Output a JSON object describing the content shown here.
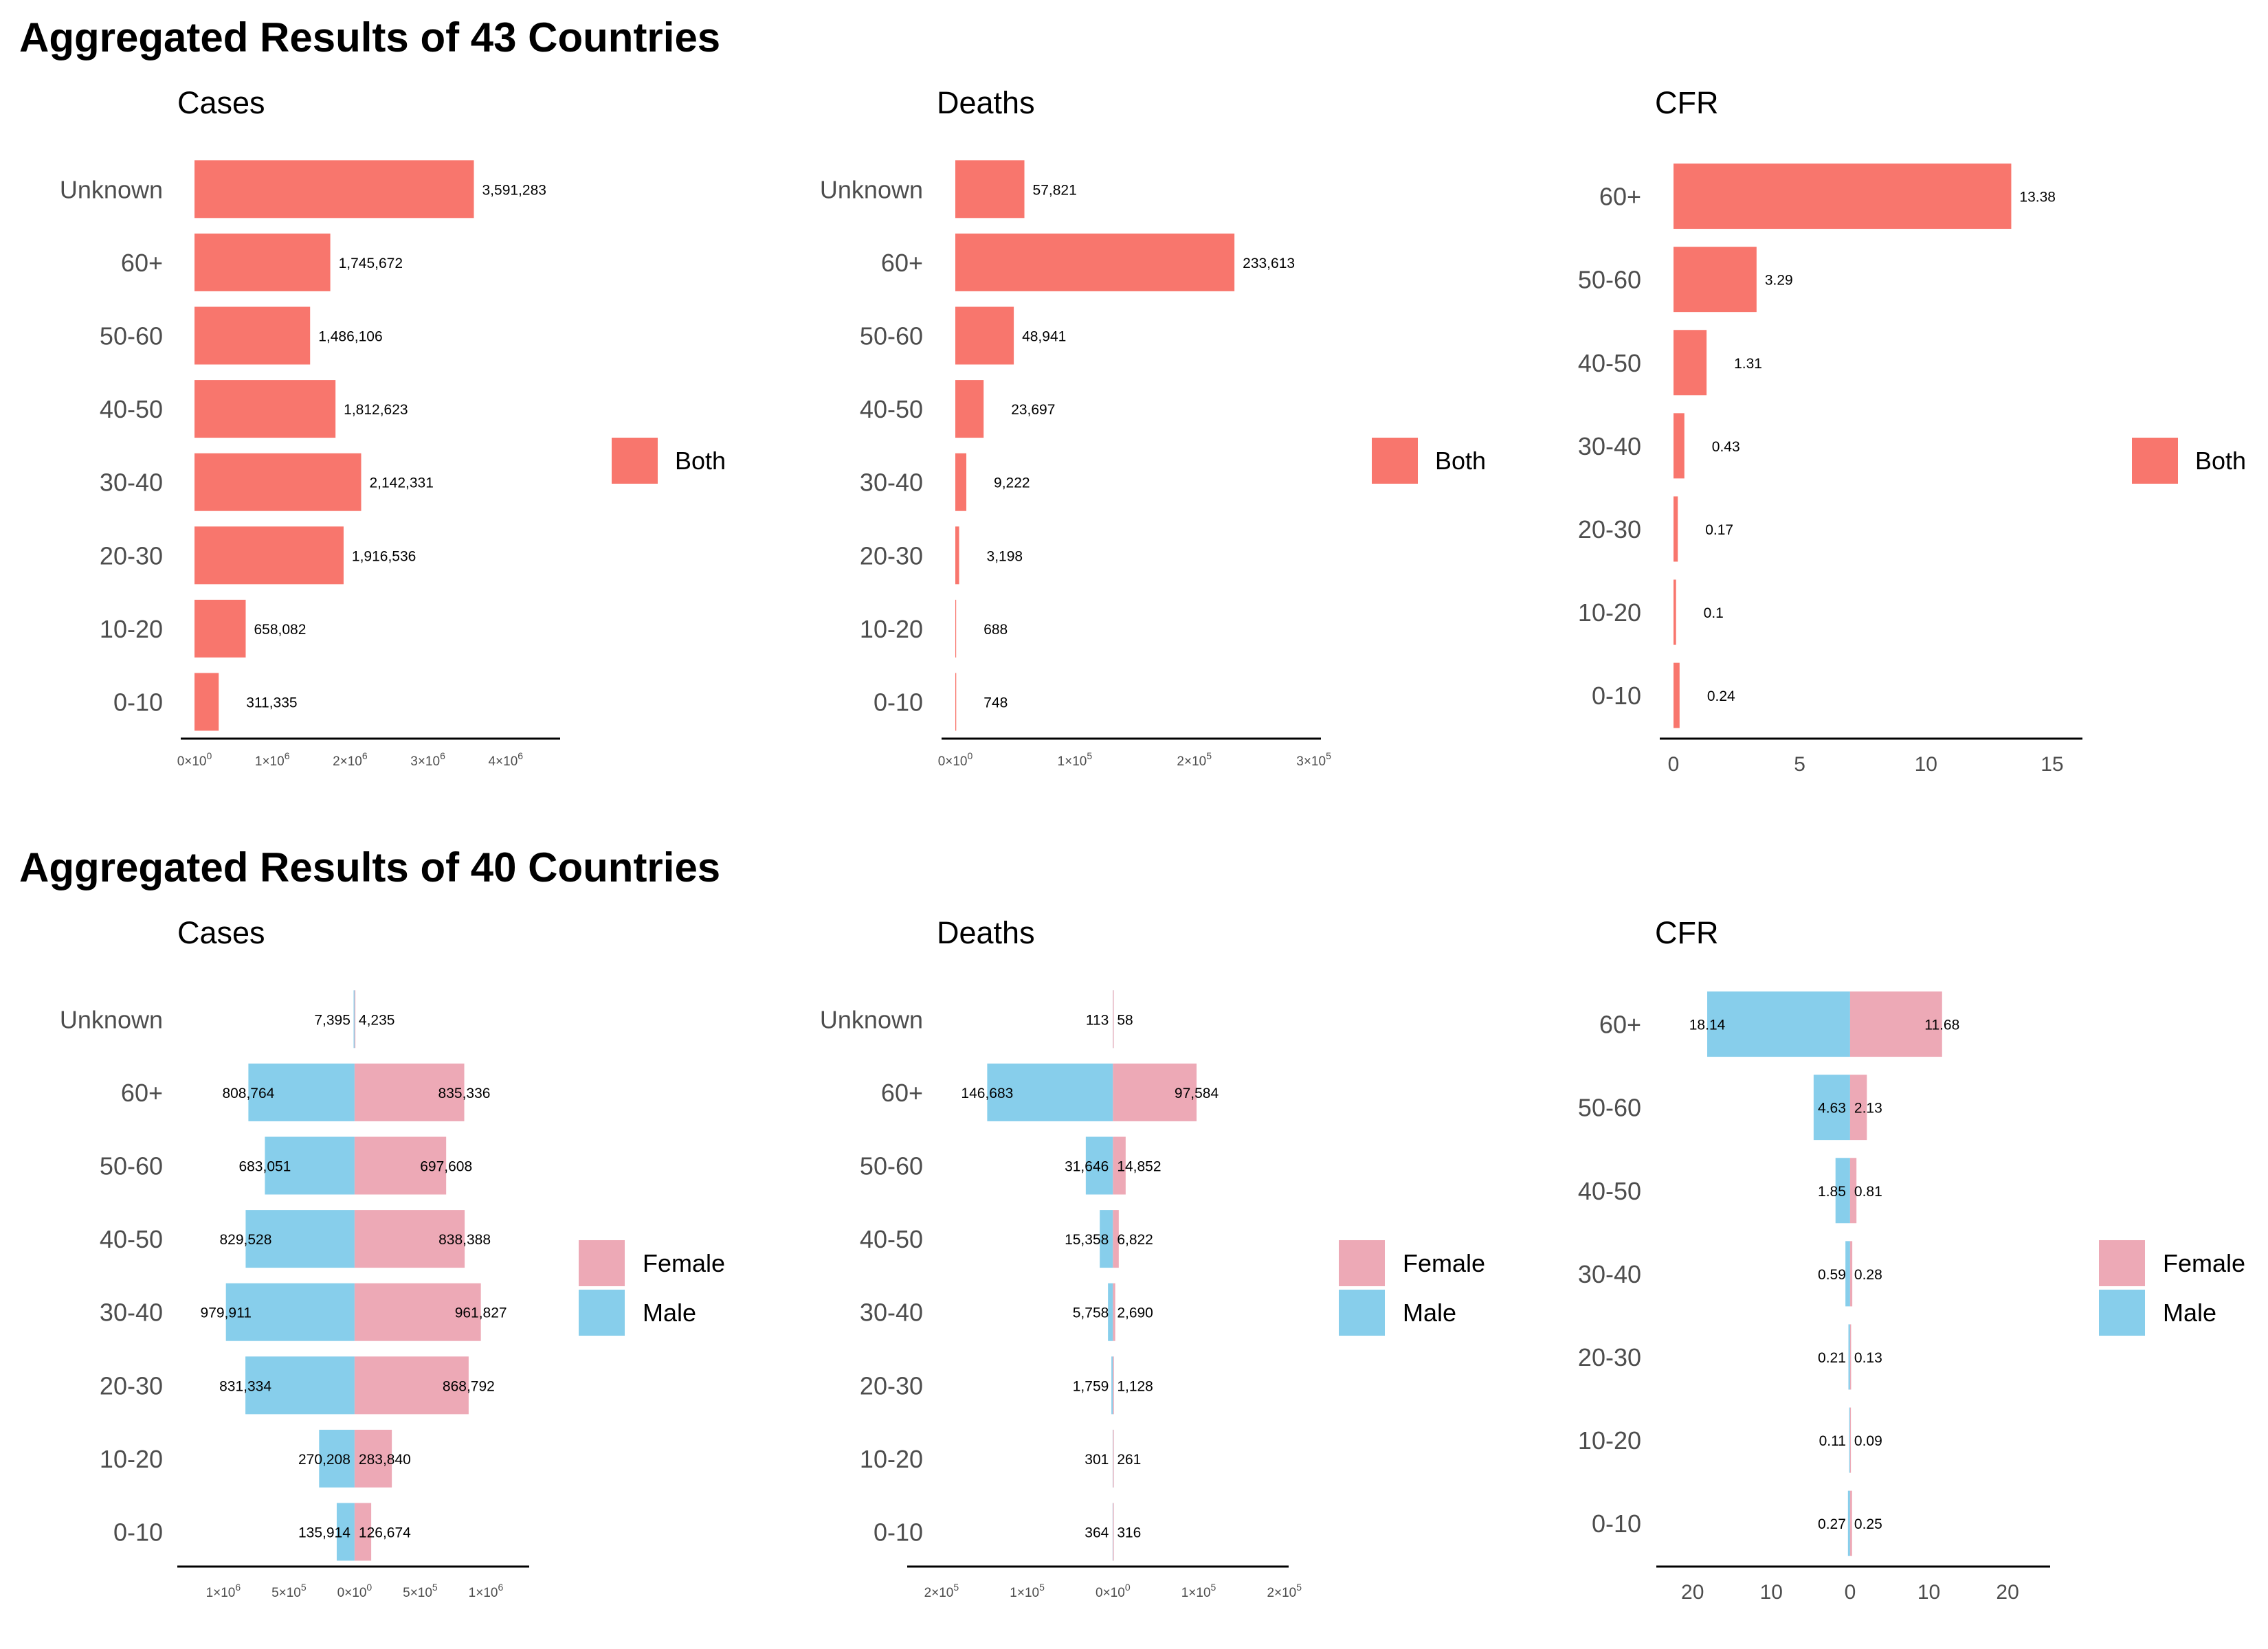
{
  "sections": [
    {
      "title": "Aggregated Results of 43 Countries",
      "charts": [
        {
          "title": "Cases",
          "type": "bar",
          "orientation": "horizontal",
          "categories": [
            "Unknown",
            "60+",
            "50-60",
            "40-50",
            "30-40",
            "20-30",
            "10-20",
            "0-10"
          ],
          "series": [
            {
              "name": "Both",
              "values": [
                3591283,
                1745672,
                1486106,
                1812623,
                2142331,
                1916536,
                658082,
                311335
              ]
            }
          ],
          "value_labels": [
            [
              "3,591,283",
              "1,745,672",
              "1,486,106",
              "1,812,623",
              "2,142,331",
              "1,916,536",
              "658,082",
              "311,335"
            ]
          ],
          "xlim": [
            0,
            4700000
          ],
          "xticks": [
            {
              "value": 0,
              "mant": "0",
              "exp": "0"
            },
            {
              "value": 1000000,
              "mant": "1",
              "exp": "6"
            },
            {
              "value": 2000000,
              "mant": "2",
              "exp": "6"
            },
            {
              "value": 3000000,
              "mant": "3",
              "exp": "6"
            },
            {
              "value": 4000000,
              "mant": "4",
              "exp": "6"
            }
          ],
          "legend_position": "right"
        },
        {
          "title": "Deaths",
          "type": "bar",
          "orientation": "horizontal",
          "categories": [
            "Unknown",
            "60+",
            "50-60",
            "40-50",
            "30-40",
            "20-30",
            "10-20",
            "0-10"
          ],
          "series": [
            {
              "name": "Both",
              "values": [
                57821,
                233613,
                48941,
                23697,
                9222,
                3198,
                688,
                748
              ]
            }
          ],
          "value_labels": [
            [
              "57,821",
              "233,613",
              "48,941",
              "23,697",
              "9,222",
              "3,198",
              "688",
              "748"
            ]
          ],
          "xlim": [
            0,
            306000
          ],
          "xticks": [
            {
              "value": 0,
              "mant": "0",
              "exp": "0"
            },
            {
              "value": 100000,
              "mant": "1",
              "exp": "5"
            },
            {
              "value": 200000,
              "mant": "2",
              "exp": "5"
            },
            {
              "value": 300000,
              "mant": "3",
              "exp": "5"
            }
          ],
          "legend_position": "right"
        },
        {
          "title": "CFR",
          "type": "bar",
          "orientation": "horizontal",
          "categories": [
            "60+",
            "50-60",
            "40-50",
            "30-40",
            "20-30",
            "10-20",
            "0-10"
          ],
          "series": [
            {
              "name": "Both",
              "values": [
                13.38,
                3.29,
                1.31,
                0.43,
                0.17,
                0.1,
                0.24
              ]
            }
          ],
          "value_labels": [
            [
              "13.38",
              "3.29",
              "1.31",
              "0.43",
              "0.17",
              "0.1",
              "0.24"
            ]
          ],
          "xlim": [
            0,
            16.2
          ],
          "xticks": [
            {
              "value": 0,
              "label": "0"
            },
            {
              "value": 5,
              "label": "5"
            },
            {
              "value": 10,
              "label": "10"
            },
            {
              "value": 15,
              "label": "15"
            }
          ],
          "legend_position": "right"
        }
      ]
    },
    {
      "title": "Aggregated Results of 40 Countries",
      "charts": [
        {
          "title": "Cases",
          "type": "bar",
          "orientation": "horizontal-diverging",
          "categories": [
            "Unknown",
            "60+",
            "50-60",
            "40-50",
            "30-40",
            "20-30",
            "10-20",
            "0-10"
          ],
          "series": [
            {
              "name": "Male",
              "side": "left",
              "values": [
                7395,
                808764,
                683051,
                829528,
                979911,
                831334,
                270208,
                135914
              ]
            },
            {
              "name": "Female",
              "side": "right",
              "values": [
                4235,
                835336,
                697608,
                838388,
                961827,
                868792,
                283840,
                126674
              ]
            }
          ],
          "value_labels": [
            [
              "7,395",
              "808,764",
              "683,051",
              "829,528",
              "979,911",
              "831,334",
              "270,208",
              "135,914"
            ],
            [
              "4,235",
              "835,336",
              "697,608",
              "838,388",
              "961,827",
              "868,792",
              "283,840",
              "126,674"
            ]
          ],
          "xlim": [
            -1350000,
            1330000
          ],
          "xticks": [
            {
              "value": -1000000,
              "mant": "1",
              "exp": "6"
            },
            {
              "value": -500000,
              "mant": "5",
              "exp": "5"
            },
            {
              "value": 0,
              "mant": "0",
              "exp": "0"
            },
            {
              "value": 500000,
              "mant": "5",
              "exp": "5"
            },
            {
              "value": 1000000,
              "mant": "1",
              "exp": "6"
            }
          ],
          "legend_position": "right",
          "legend": [
            "Female",
            "Male"
          ]
        },
        {
          "title": "Deaths",
          "type": "bar",
          "orientation": "horizontal-diverging",
          "categories": [
            "Unknown",
            "60+",
            "50-60",
            "40-50",
            "30-40",
            "20-30",
            "10-20",
            "0-10"
          ],
          "series": [
            {
              "name": "Male",
              "side": "left",
              "values": [
                113,
                146683,
                31646,
                15358,
                5758,
                1759,
                301,
                364
              ]
            },
            {
              "name": "Female",
              "side": "right",
              "values": [
                58,
                97584,
                14852,
                6822,
                2690,
                1128,
                261,
                316
              ]
            }
          ],
          "value_labels": [
            [
              "113",
              "146,683",
              "31,646",
              "15,358",
              "5,758",
              "1,759",
              "301",
              "364"
            ],
            [
              "58",
              "97,584",
              "14,852",
              "6,822",
              "2,690",
              "1,128",
              "261",
              "316"
            ]
          ],
          "xlim": [
            -240000,
            205000
          ],
          "xticks": [
            {
              "value": -200000,
              "mant": "2",
              "exp": "5"
            },
            {
              "value": -100000,
              "mant": "1",
              "exp": "5"
            },
            {
              "value": 0,
              "mant": "0",
              "exp": "0"
            },
            {
              "value": 100000,
              "mant": "1",
              "exp": "5"
            },
            {
              "value": 200000,
              "mant": "2",
              "exp": "5"
            }
          ],
          "legend_position": "right",
          "legend": [
            "Female",
            "Male"
          ]
        },
        {
          "title": "CFR",
          "type": "bar",
          "orientation": "horizontal-diverging",
          "categories": [
            "60+",
            "50-60",
            "40-50",
            "30-40",
            "20-30",
            "10-20",
            "0-10"
          ],
          "series": [
            {
              "name": "Male",
              "side": "left",
              "values": [
                18.14,
                4.63,
                1.85,
                0.59,
                0.21,
                0.11,
                0.27
              ]
            },
            {
              "name": "Female",
              "side": "right",
              "values": [
                11.68,
                2.13,
                0.81,
                0.28,
                0.13,
                0.09,
                0.25
              ]
            }
          ],
          "value_labels": [
            [
              "18.14",
              "4.63",
              "1.85",
              "0.59",
              "0.21",
              "0.11",
              "0.27"
            ],
            [
              "11.68",
              "2.13",
              "0.81",
              "0.28",
              "0.13",
              "0.09",
              "0.25"
            ]
          ],
          "xlim": [
            -24.6,
            25.4
          ],
          "xticks": [
            {
              "value": -20,
              "label": "20"
            },
            {
              "value": -10,
              "label": "10"
            },
            {
              "value": 0,
              "label": "0"
            },
            {
              "value": 10,
              "label": "10"
            },
            {
              "value": 20,
              "label": "20"
            }
          ],
          "legend_position": "right",
          "legend": [
            "Female",
            "Male"
          ]
        }
      ]
    }
  ],
  "colors": {
    "Both": "#F8766D",
    "Female": "#EDA9B6",
    "Male": "#87CEEB",
    "axis": "#000000",
    "text": "#4d4d4d"
  }
}
